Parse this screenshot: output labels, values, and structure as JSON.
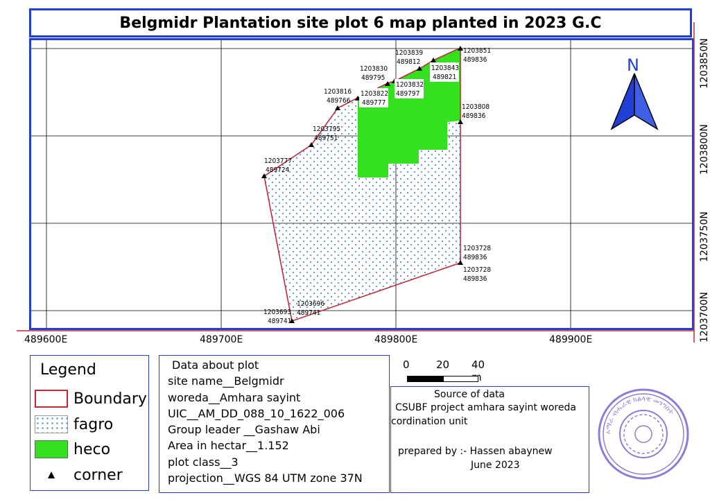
{
  "title": "Belgmidr Plantation site plot 6 map planted in 2023 G.C",
  "grid": {
    "easting_labels": [
      "489600E",
      "489700E",
      "489800E",
      "489900E"
    ],
    "northing_labels": [
      "1203850N",
      "1203800N",
      "1203750N",
      "1203700N"
    ]
  },
  "north_arrow": {
    "label": "N",
    "icon": "north-arrow-icon"
  },
  "corner_labels": [
    {
      "n": "1203851",
      "e": "489836"
    },
    {
      "n": "1203839",
      "e": "489812"
    },
    {
      "n": "1203843",
      "e": "489821"
    },
    {
      "n": "1203830",
      "e": "489795"
    },
    {
      "n": "1203832",
      "e": "489797"
    },
    {
      "n": "1203816",
      "e": "489766"
    },
    {
      "n": "1203822",
      "e": "489777"
    },
    {
      "n": "1203808",
      "e": "489836"
    },
    {
      "n": "1203795",
      "e": "489751"
    },
    {
      "n": "1203777",
      "e": "489724"
    },
    {
      "n": "1203728",
      "e": "489836"
    },
    {
      "n": "1203728",
      "e": "489836"
    },
    {
      "n": "1203696",
      "e": "489741"
    },
    {
      "n": "1203693",
      "e": "489741"
    }
  ],
  "legend": {
    "title": "Legend",
    "items": [
      {
        "label": "Boundary",
        "color": "#c0283a"
      },
      {
        "label": "fagro",
        "color": "#5a8fd0"
      },
      {
        "label": "heco",
        "color": "#33e11f"
      },
      {
        "label": "corner",
        "color": "#000000"
      }
    ]
  },
  "plot_info": {
    "heading": "Data about plot",
    "site_name": "site name__Belgmidr",
    "woreda": "woreda__Amhara sayint",
    "uic": "UIC__AM_DD_088_10_1622_006",
    "group_leader": "Group leader __Gashaw Abi",
    "area": "Area in hectar__1.152",
    "plot_class": "plot class__3",
    "projection": "projection__WGS 84 UTM zone 37N"
  },
  "scale_bar": {
    "labels": [
      "0",
      "20",
      "40 m"
    ]
  },
  "source": {
    "heading": "Source of data",
    "line1": "CSUBF project amhara sayint woreda",
    "line2": "cordination unit",
    "prepared_by": "prepared by :- Hassen abaynew",
    "date": "June 2023"
  },
  "stamp": {
    "text": "አማራ ብሔራዊ ክልላዊ መንግስት",
    "color": "#8a7fd6"
  }
}
